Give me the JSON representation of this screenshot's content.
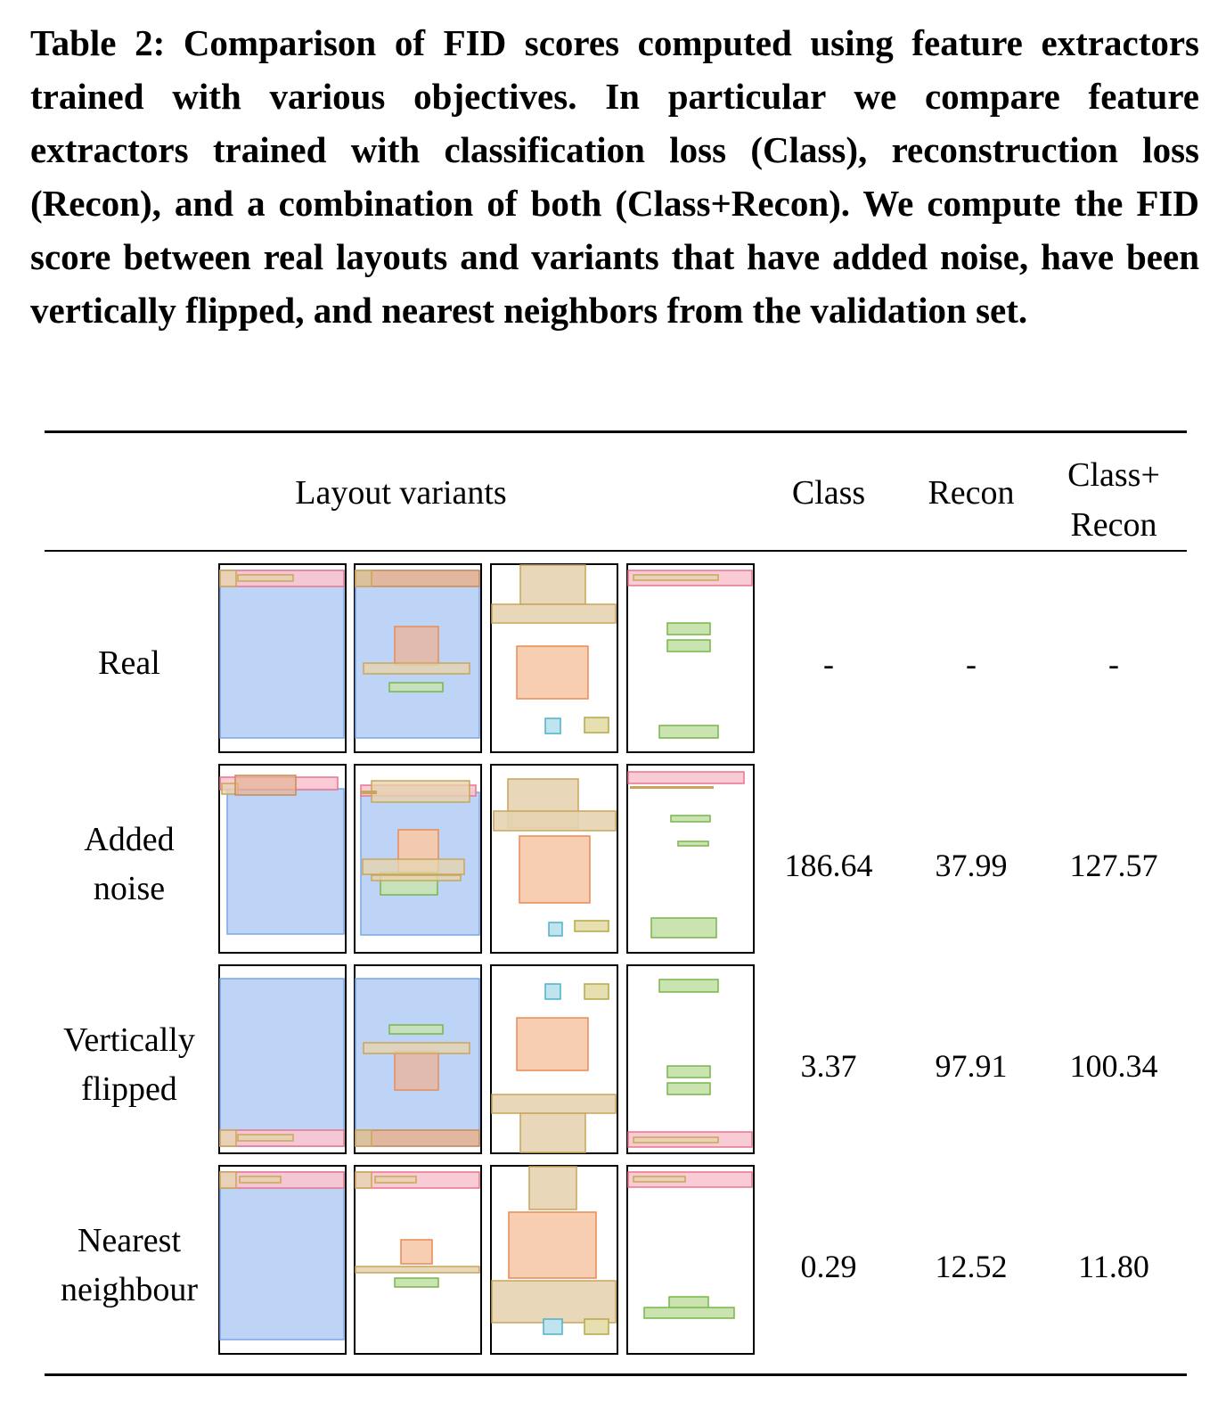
{
  "caption": "Table 2: Comparison of FID scores computed using feature extractors trained with various objectives. In particular we compare feature extractors trained with classification loss (Class), reconstruction loss (Recon), and a combination of both (Class+Recon). We compute the FID score between real layouts and variants that have added noise, have been vertically flipped, and nearest neighbors from the validation set.",
  "headers": {
    "variants": "Layout variants",
    "class": "Class",
    "recon": "Recon",
    "class_recon_1": "Class+",
    "class_recon_2": "Recon"
  },
  "rows": [
    {
      "label_1": "Real",
      "label_2": "",
      "class": "-",
      "recon": "-",
      "class_recon": "-"
    },
    {
      "label_1": "Added",
      "label_2": "noise",
      "class": "186.64",
      "recon": "37.99",
      "class_recon": "127.57"
    },
    {
      "label_1": "Vertically",
      "label_2": "flipped",
      "class": "3.37",
      "recon": "97.91",
      "class_recon": "100.34"
    },
    {
      "label_1": "Nearest",
      "label_2": "neighbour",
      "class": "0.29",
      "recon": "12.52",
      "class_recon": "11.80"
    }
  ],
  "colors": {
    "blue": "#bdd4f6",
    "blue_stroke": "#7aa6e6",
    "pink": "#f8c6d0",
    "pink_stroke": "#e8758f",
    "tan": "#e6d3b0",
    "tan_stroke": "#c9a55a",
    "orange": "#f6c9a8",
    "orange_stroke": "#e98b55",
    "green": "#c9e4b0",
    "green_stroke": "#79b54a",
    "cyan": "#bfe4ee",
    "cyan_stroke": "#4fb0cc",
    "olive": "#e6e0b0",
    "olive_stroke": "#b5a845"
  }
}
